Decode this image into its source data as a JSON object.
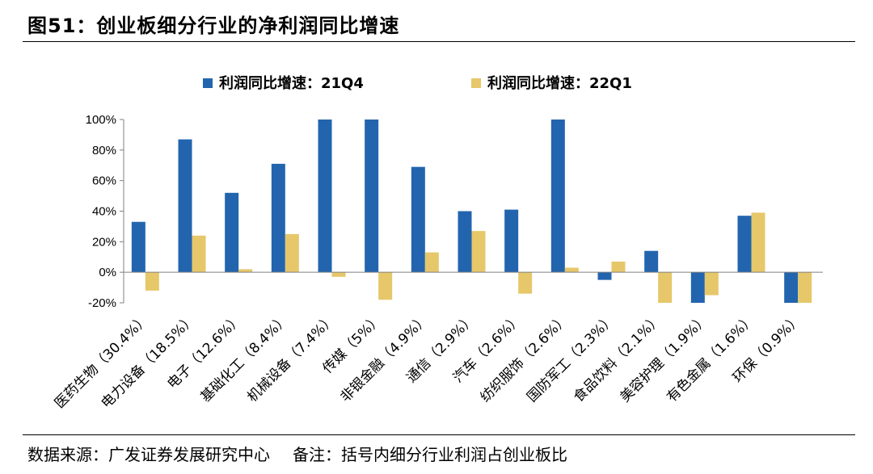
{
  "header": {
    "title": "图51：创业板细分行业的净利润同比增速"
  },
  "footer": {
    "source": "数据来源：广发证券发展研究中心",
    "note": "备注：括号内细分行业利润占创业板比"
  },
  "colors": {
    "series_21q4": "#2265AE",
    "series_22q1": "#E6C76A",
    "axis": "#808080"
  },
  "chart_data": {
    "type": "bar",
    "title": "",
    "xlabel": "",
    "ylabel": "",
    "ylim": [
      -20,
      100
    ],
    "yticks": [
      -20,
      0,
      20,
      40,
      60,
      80,
      100
    ],
    "ytick_labels": [
      "-20%",
      "0%",
      "20%",
      "40%",
      "60%",
      "80%",
      "100%"
    ],
    "grid": false,
    "legend_position": "top-center",
    "categories": [
      "医药生物（30.4%）",
      "电力设备（18.5%）",
      "电子（12.6%）",
      "基础化工（8.4%）",
      "机械设备（7.4%）",
      "传媒（5%）",
      "非银金融（4.9%）",
      "通信（2.9%）",
      "汽车（2.6%）",
      "纺织服饰（2.6%）",
      "国防军工（2.3%）",
      "食品饮料（2.1%）",
      "美容护理（1.9%）",
      "有色金属（1.6%）",
      "环保（0.9%）"
    ],
    "series": [
      {
        "name": "利润同比增速：21Q4",
        "values": [
          33,
          87,
          52,
          71,
          100,
          100,
          69,
          40,
          41,
          100,
          -5,
          14,
          -20,
          37,
          -20
        ]
      },
      {
        "name": "利润同比增速：22Q1",
        "values": [
          -12,
          24,
          2,
          25,
          -3,
          -18,
          13,
          27,
          -14,
          3,
          7,
          -20,
          -15,
          39,
          -20
        ]
      }
    ]
  }
}
